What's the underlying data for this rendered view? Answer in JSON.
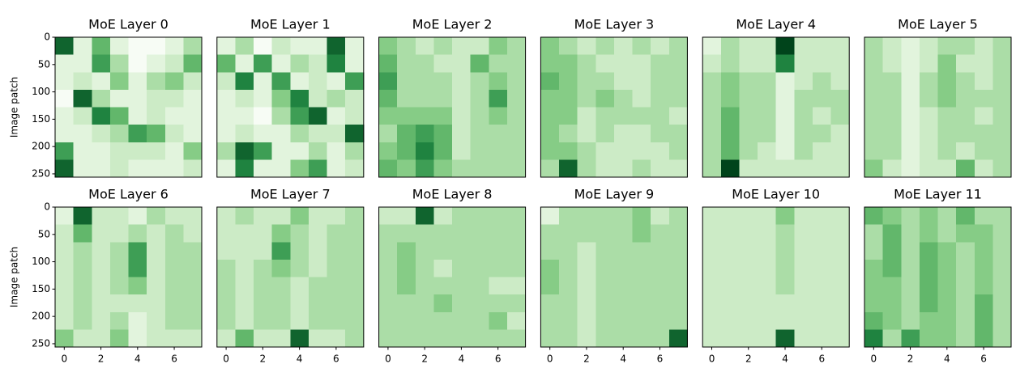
{
  "chart_data": {
    "type": "heatmap-grid",
    "colormap": [
      "#f7fcf5",
      "#c7e9c0",
      "#74c476",
      "#238b45",
      "#00441b"
    ],
    "vlim": [
      0,
      9
    ],
    "xlim": [
      -0.5,
      7.5
    ],
    "ylim": [
      256,
      0
    ],
    "xticks": [
      0,
      2,
      4,
      6
    ],
    "yticks": [
      0,
      50,
      100,
      150,
      200,
      250
    ],
    "ylabel": "Image patch",
    "panels": [
      {
        "title": "MoE Layer 0",
        "z": [
          [
            8,
            1,
            5,
            1,
            0,
            0,
            1,
            3
          ],
          [
            1,
            1,
            6,
            3,
            0,
            1,
            2,
            5
          ],
          [
            1,
            2,
            1,
            4,
            1,
            3,
            4,
            2
          ],
          [
            0,
            8,
            3,
            1,
            1,
            2,
            2,
            1
          ],
          [
            1,
            2,
            7,
            5,
            1,
            2,
            1,
            1
          ],
          [
            1,
            1,
            2,
            3,
            6,
            5,
            2,
            1
          ],
          [
            6,
            1,
            1,
            2,
            2,
            2,
            1,
            4
          ],
          [
            8,
            1,
            1,
            2,
            1,
            1,
            1,
            2
          ]
        ]
      },
      {
        "title": "MoE Layer 1",
        "z": [
          [
            1,
            3,
            0,
            2,
            1,
            1,
            8,
            1
          ],
          [
            5,
            1,
            6,
            1,
            3,
            2,
            7,
            1
          ],
          [
            2,
            7,
            1,
            6,
            1,
            2,
            1,
            6
          ],
          [
            1,
            2,
            1,
            4,
            7,
            2,
            3,
            2
          ],
          [
            1,
            1,
            0,
            3,
            6,
            8,
            1,
            2
          ],
          [
            1,
            2,
            1,
            1,
            3,
            2,
            2,
            8
          ],
          [
            3,
            8,
            6,
            1,
            1,
            3,
            1,
            3
          ],
          [
            1,
            7,
            1,
            1,
            4,
            6,
            1,
            2
          ]
        ]
      },
      {
        "title": "MoE Layer 2",
        "z": [
          [
            4,
            3,
            2,
            3,
            2,
            2,
            4,
            3
          ],
          [
            5,
            3,
            3,
            2,
            2,
            5,
            3,
            3
          ],
          [
            6,
            3,
            3,
            3,
            2,
            3,
            4,
            3
          ],
          [
            5,
            3,
            3,
            3,
            2,
            3,
            6,
            3
          ],
          [
            4,
            4,
            4,
            4,
            2,
            3,
            4,
            3
          ],
          [
            3,
            5,
            6,
            5,
            2,
            3,
            3,
            3
          ],
          [
            4,
            5,
            7,
            5,
            2,
            3,
            3,
            3
          ],
          [
            5,
            4,
            6,
            4,
            3,
            3,
            3,
            3
          ]
        ]
      },
      {
        "title": "MoE Layer 3",
        "z": [
          [
            4,
            3,
            2,
            3,
            2,
            3,
            2,
            3
          ],
          [
            4,
            4,
            3,
            2,
            2,
            2,
            3,
            3
          ],
          [
            5,
            4,
            3,
            3,
            2,
            2,
            3,
            3
          ],
          [
            4,
            4,
            3,
            4,
            3,
            2,
            3,
            3
          ],
          [
            4,
            4,
            2,
            3,
            3,
            3,
            3,
            2
          ],
          [
            4,
            3,
            2,
            3,
            2,
            2,
            3,
            3
          ],
          [
            4,
            4,
            3,
            2,
            2,
            2,
            2,
            3
          ],
          [
            3,
            8,
            3,
            2,
            2,
            3,
            2,
            2
          ]
        ]
      },
      {
        "title": "MoE Layer 4",
        "z": [
          [
            1,
            3,
            2,
            2,
            9,
            2,
            2,
            2
          ],
          [
            2,
            3,
            2,
            2,
            7,
            2,
            2,
            2
          ],
          [
            3,
            4,
            3,
            3,
            1,
            2,
            3,
            2
          ],
          [
            3,
            4,
            3,
            3,
            1,
            3,
            3,
            3
          ],
          [
            3,
            5,
            3,
            3,
            1,
            3,
            2,
            3
          ],
          [
            3,
            5,
            3,
            3,
            1,
            3,
            3,
            2
          ],
          [
            3,
            5,
            3,
            2,
            1,
            3,
            2,
            2
          ],
          [
            3,
            9,
            2,
            2,
            2,
            2,
            2,
            2
          ]
        ]
      },
      {
        "title": "MoE Layer 5",
        "z": [
          [
            3,
            2,
            1,
            2,
            3,
            3,
            2,
            3
          ],
          [
            3,
            2,
            1,
            2,
            4,
            2,
            2,
            3
          ],
          [
            3,
            3,
            1,
            3,
            4,
            3,
            2,
            3
          ],
          [
            3,
            3,
            1,
            3,
            4,
            3,
            3,
            3
          ],
          [
            3,
            3,
            1,
            2,
            3,
            3,
            2,
            3
          ],
          [
            3,
            3,
            1,
            2,
            3,
            3,
            3,
            3
          ],
          [
            3,
            3,
            1,
            2,
            3,
            2,
            3,
            3
          ],
          [
            4,
            2,
            1,
            2,
            2,
            5,
            2,
            3
          ]
        ]
      },
      {
        "title": "MoE Layer 6",
        "z": [
          [
            1,
            8,
            2,
            2,
            1,
            3,
            2,
            2
          ],
          [
            2,
            5,
            2,
            2,
            3,
            2,
            3,
            2
          ],
          [
            2,
            3,
            2,
            3,
            6,
            2,
            3,
            3
          ],
          [
            2,
            3,
            2,
            3,
            6,
            2,
            3,
            3
          ],
          [
            2,
            3,
            2,
            3,
            4,
            2,
            3,
            3
          ],
          [
            2,
            3,
            2,
            2,
            2,
            2,
            3,
            3
          ],
          [
            2,
            3,
            2,
            3,
            1,
            2,
            3,
            3
          ],
          [
            4,
            2,
            2,
            4,
            1,
            2,
            2,
            2
          ]
        ]
      },
      {
        "title": "MoE Layer 7",
        "z": [
          [
            2,
            3,
            2,
            2,
            4,
            2,
            2,
            3
          ],
          [
            2,
            2,
            2,
            4,
            3,
            2,
            3,
            3
          ],
          [
            2,
            2,
            2,
            6,
            3,
            2,
            3,
            3
          ],
          [
            3,
            2,
            3,
            4,
            3,
            2,
            3,
            3
          ],
          [
            3,
            2,
            3,
            3,
            2,
            3,
            3,
            3
          ],
          [
            3,
            2,
            3,
            3,
            2,
            3,
            3,
            3
          ],
          [
            3,
            2,
            3,
            3,
            2,
            3,
            3,
            3
          ],
          [
            2,
            5,
            2,
            2,
            8,
            2,
            2,
            3
          ]
        ]
      },
      {
        "title": "MoE Layer 8",
        "z": [
          [
            2,
            2,
            8,
            2,
            3,
            3,
            3,
            3
          ],
          [
            3,
            3,
            3,
            3,
            3,
            3,
            3,
            3
          ],
          [
            3,
            4,
            3,
            3,
            3,
            3,
            3,
            3
          ],
          [
            3,
            4,
            3,
            2,
            3,
            3,
            3,
            3
          ],
          [
            3,
            4,
            3,
            3,
            3,
            3,
            2,
            2
          ],
          [
            3,
            3,
            3,
            4,
            3,
            3,
            3,
            3
          ],
          [
            3,
            3,
            3,
            3,
            3,
            3,
            4,
            2
          ],
          [
            3,
            3,
            3,
            3,
            3,
            3,
            3,
            3
          ]
        ]
      },
      {
        "title": "MoE Layer 9",
        "z": [
          [
            1,
            3,
            3,
            3,
            3,
            4,
            2,
            3
          ],
          [
            3,
            3,
            3,
            3,
            3,
            4,
            3,
            3
          ],
          [
            3,
            3,
            2,
            3,
            3,
            3,
            3,
            3
          ],
          [
            4,
            3,
            2,
            3,
            3,
            3,
            3,
            3
          ],
          [
            4,
            3,
            2,
            3,
            3,
            3,
            3,
            3
          ],
          [
            3,
            3,
            2,
            3,
            3,
            3,
            3,
            3
          ],
          [
            3,
            3,
            2,
            3,
            3,
            3,
            3,
            3
          ],
          [
            3,
            3,
            2,
            3,
            3,
            3,
            3,
            8
          ]
        ]
      },
      {
        "title": "MoE Layer 10",
        "z": [
          [
            2,
            2,
            2,
            2,
            4,
            2,
            2,
            2
          ],
          [
            2,
            2,
            2,
            2,
            3,
            2,
            2,
            2
          ],
          [
            2,
            2,
            2,
            2,
            3,
            2,
            2,
            2
          ],
          [
            2,
            2,
            2,
            2,
            3,
            2,
            2,
            2
          ],
          [
            2,
            2,
            2,
            2,
            3,
            2,
            2,
            2
          ],
          [
            2,
            2,
            2,
            2,
            2,
            2,
            2,
            2
          ],
          [
            2,
            2,
            2,
            2,
            2,
            2,
            2,
            2
          ],
          [
            2,
            2,
            2,
            2,
            8,
            2,
            2,
            2
          ]
        ]
      },
      {
        "title": "MoE Layer 11",
        "z": [
          [
            5,
            4,
            3,
            4,
            3,
            5,
            3,
            3
          ],
          [
            3,
            5,
            3,
            4,
            3,
            4,
            4,
            3
          ],
          [
            3,
            5,
            3,
            5,
            4,
            3,
            4,
            3
          ],
          [
            4,
            5,
            3,
            5,
            4,
            3,
            4,
            3
          ],
          [
            4,
            4,
            3,
            5,
            4,
            3,
            4,
            3
          ],
          [
            4,
            4,
            3,
            5,
            4,
            3,
            5,
            3
          ],
          [
            5,
            4,
            3,
            4,
            4,
            3,
            5,
            3
          ],
          [
            7,
            3,
            6,
            4,
            4,
            3,
            5,
            3
          ]
        ]
      }
    ]
  }
}
